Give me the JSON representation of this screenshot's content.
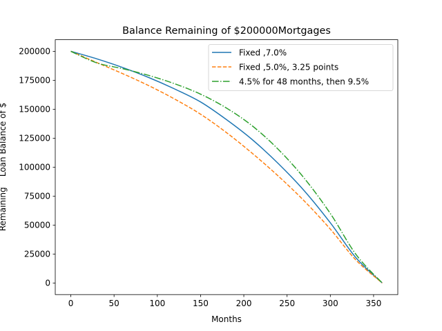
{
  "chart_data": {
    "type": "line",
    "title": "Balance Remaining of $200000Mortgages",
    "xlabel": "Months",
    "ylabel": "Remaining    Loan Balance of $",
    "xlim": [
      -18,
      378
    ],
    "ylim": [
      -10000,
      210000
    ],
    "xticks": [
      0,
      50,
      100,
      150,
      200,
      250,
      300,
      350
    ],
    "yticks": [
      0,
      25000,
      50000,
      75000,
      100000,
      125000,
      150000,
      175000,
      200000
    ],
    "grid": false,
    "legend_position": "upper-right",
    "x": [
      0,
      30,
      60,
      90,
      120,
      150,
      180,
      210,
      240,
      270,
      300,
      330,
      360
    ],
    "series": [
      {
        "name": "Fixed ,7.0%",
        "color": "#1f77b4",
        "style": "solid",
        "values": [
          200000,
          193500,
          186000,
          177400,
          167500,
          156300,
          141000,
          123600,
          103000,
          79500,
          52000,
          21500,
          0
        ]
      },
      {
        "name": "Fixed ,5.0%, 3.25 points",
        "color": "#ff7f0e",
        "style": "dashed",
        "values": [
          200000,
          190300,
          180700,
          170400,
          158800,
          145700,
          129800,
          111800,
          92200,
          70700,
          46500,
          19500,
          0
        ]
      },
      {
        "name": "4.5% for 48 months, then 9.5%",
        "color": "#2ca02c",
        "style": "dashdot",
        "values": [
          200000,
          190000,
          185000,
          179200,
          172000,
          163000,
          151000,
          135500,
          115200,
          90300,
          60000,
          24300,
          0
        ]
      }
    ]
  }
}
